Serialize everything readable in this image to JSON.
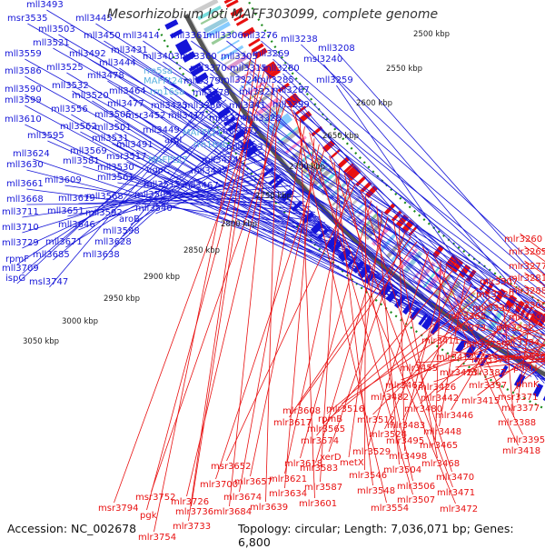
{
  "title": "Mesorhizobium loti MAFF303099, complete genome",
  "footer": {
    "accession": "Accession: NC_002678",
    "summary": "Topology: circular; Length: 7,036,071 bp; Genes: 6,800"
  },
  "colors": {
    "minus_strand": "#1515d8",
    "plus_strand": "#e81010",
    "rna_label": "#5ab0e0",
    "backbone": "#555555",
    "ticks": "#1a8a1a"
  },
  "scale_labels": [
    "2500 kbp",
    "2550 kbp",
    "2600 kbp",
    "2650 kbp",
    "2700 kbp",
    "2750 kbp",
    "2800 kbp",
    "2850 kbp",
    "2900 kbp",
    "2950 kbp",
    "3000 kbp",
    "3050 kbp"
  ],
  "left_labels": [
    "mll3493",
    "msr3535",
    "mll3445",
    "mll3503",
    "mll3521",
    "mll3450",
    "mll3414",
    "mll3361",
    "mll3306",
    "mll3276",
    "mll3238",
    "mll3559",
    "mll3492",
    "mll3431",
    "mll3403",
    "mll3360",
    "mll3305",
    "mll3269",
    "mll3208",
    "mll3586",
    "mll3525",
    "mll3444",
    "rrn5sa",
    "mll3370",
    "mll3315",
    "mll3280",
    "msl3240",
    "mll3478",
    "MAFFt24",
    "mll3379",
    "mll3324",
    "mll3285",
    "mll3590",
    "mll3532",
    "mll3464",
    "rrn16sa",
    "mll3378",
    "mll3321",
    "mll3287",
    "mll3259",
    "mll3599",
    "mll3520",
    "mll3477",
    "mll3425",
    "mll3386",
    "mll3341",
    "mll3299",
    "mll3556",
    "mll3505",
    "msr3452",
    "mll3417",
    "mll3374",
    "mll3328",
    "mll3610",
    "mll3562",
    "mll3501",
    "mll3449",
    "MAFFt21",
    "mll3372",
    "mll3595",
    "mll3531",
    "argI",
    "rrn16sb",
    "mll3569",
    "mll3491",
    "mll3624",
    "msr3517",
    "MAFFt27",
    "mll3424",
    "mll3393",
    "mll3630",
    "mll3581",
    "mll3530",
    "ugpC",
    "mll3447",
    "mll3661",
    "mll3609",
    "mll3561",
    "mll3515",
    "mll3467",
    "mll3668",
    "mll3619",
    "mll3568",
    "mll3509",
    "mll3711",
    "mll3651",
    "mll3592",
    "mll3540",
    "mll3710",
    "mll3646",
    "aroB",
    "mll3729",
    "mll3671",
    "mll3628",
    "mll3598",
    "rpmF",
    "mll3685",
    "mll3638",
    "mll3709",
    "ispG",
    "msl3747"
  ],
  "right_labels": [
    "mlr3260",
    "mlr3265",
    "mlr3277",
    "mlr3281",
    "mlr3307",
    "mlr3288",
    "mlr3320",
    "mlr3300",
    "mlr3330",
    "mlr3304",
    "mlr3365",
    "mlr3332",
    "mlr3373",
    "mlr3411",
    "mlr3375",
    "mlr3334",
    "mlr3412",
    "mlr3376",
    "mlr3336",
    "phnH",
    "mlr3387",
    "mlr3455",
    "mlr3423",
    "mlr3397",
    "phnK",
    "mlr3426",
    "mlr3415",
    "msr3371",
    "mlr3463",
    "mlr3442",
    "mlr3377",
    "mlr3482",
    "mlr3480",
    "mlr3446",
    "mlr3388",
    "mlr3516",
    "mlr3512",
    "mlr3565",
    "rpmB",
    "mlr3483",
    "mlr3448",
    "mlr3524",
    "mlr3574",
    "mlr3495",
    "mlr3465",
    "mlr3395",
    "mlr3529",
    "mlr3418",
    "mlr3608",
    "mlr3617",
    "xerD",
    "mlr3498",
    "mlr3468",
    "mlr3583",
    "metX",
    "mlr3504",
    "mlr3618",
    "mlr3546",
    "mlr3470",
    "msr3652",
    "mlr3621",
    "mlr3506",
    "mlr3587",
    "mlr3548",
    "mlr3471",
    "mlr3700",
    "mlr3657",
    "mlr3634",
    "mlr3507",
    "mlr3674",
    "mlr3601",
    "mlr3554",
    "mlr3472",
    "msr3752",
    "mlr3726",
    "mlr3639",
    "mlr3684",
    "msr3794",
    "pgk",
    "mlr3736",
    "mlr3733",
    "mlr3754"
  ]
}
